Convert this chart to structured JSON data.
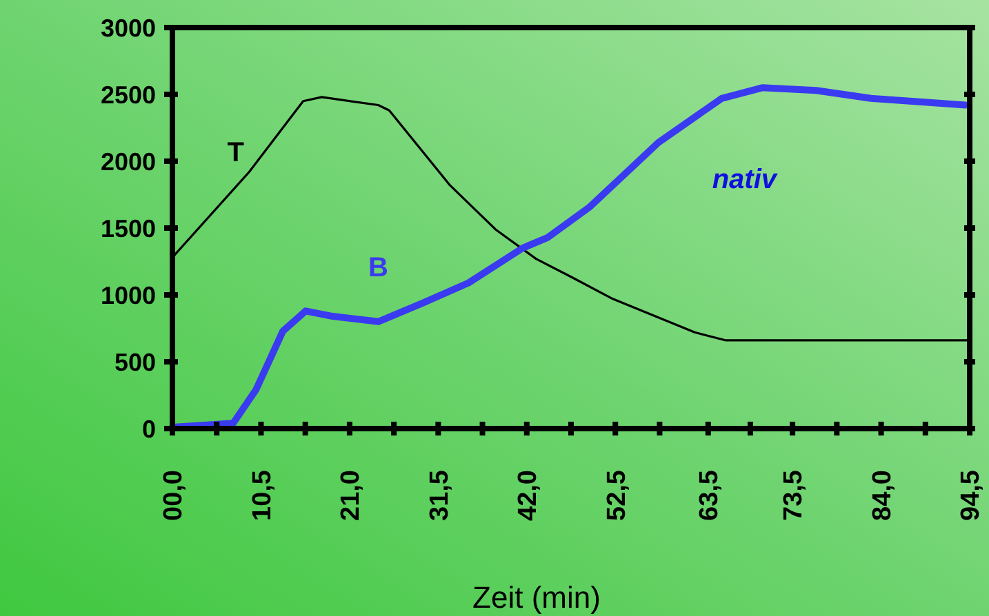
{
  "chart_data": {
    "type": "line",
    "xlabel": "Zeit (min)",
    "xlim": [
      0,
      94.5
    ],
    "xticks": [
      {
        "value": 0,
        "label": "00,0"
      },
      {
        "value": 5.25,
        "label": null
      },
      {
        "value": 10.5,
        "label": "10,5"
      },
      {
        "value": 15.75,
        "label": null
      },
      {
        "value": 21,
        "label": "21,0"
      },
      {
        "value": 26.25,
        "label": null
      },
      {
        "value": 31.5,
        "label": "31,5"
      },
      {
        "value": 36.75,
        "label": null
      },
      {
        "value": 42,
        "label": "42,0"
      },
      {
        "value": 47.25,
        "label": null
      },
      {
        "value": 52.5,
        "label": "52,5"
      },
      {
        "value": 57.75,
        "label": null
      },
      {
        "value": 63.5,
        "label": "63,5"
      },
      {
        "value": 68.5,
        "label": null
      },
      {
        "value": 73.5,
        "label": "73,5"
      },
      {
        "value": 78.75,
        "label": null
      },
      {
        "value": 84,
        "label": "84,0"
      },
      {
        "value": 89.25,
        "label": null
      },
      {
        "value": 94.5,
        "label": "94,5"
      }
    ],
    "ylim": [
      0,
      3000
    ],
    "yticks": [
      0,
      500,
      1000,
      1500,
      2000,
      2500,
      3000
    ],
    "grid": false,
    "marker": "none",
    "line_style": "solid",
    "series": [
      {
        "name": "T",
        "color": "#000000",
        "x": [
          0,
          9.1,
          15.5,
          17.7,
          24.4,
          25.7,
          32.9,
          38.3,
          43.1,
          47.4,
          52.2,
          61.9,
          65.6,
          75,
          85,
          94.5
        ],
        "values": [
          1280,
          1920,
          2450,
          2480,
          2420,
          2380,
          1820,
          1490,
          1270,
          1130,
          970,
          720,
          660,
          660,
          660,
          660
        ]
      },
      {
        "name": "B",
        "color": "#3a3af0",
        "x": [
          0,
          7.2,
          9.9,
          13.1,
          15.8,
          19,
          24.4,
          29.7,
          35.1,
          41.5,
          44.5,
          49.5,
          57.6,
          65.1,
          69.9,
          76.3,
          82.8,
          94
        ],
        "values": [
          10,
          40,
          290,
          730,
          880,
          840,
          800,
          940,
          1090,
          1350,
          1430,
          1660,
          2140,
          2470,
          2550,
          2530,
          2470,
          2420
        ]
      }
    ],
    "annotations": [
      "nativ"
    ]
  }
}
